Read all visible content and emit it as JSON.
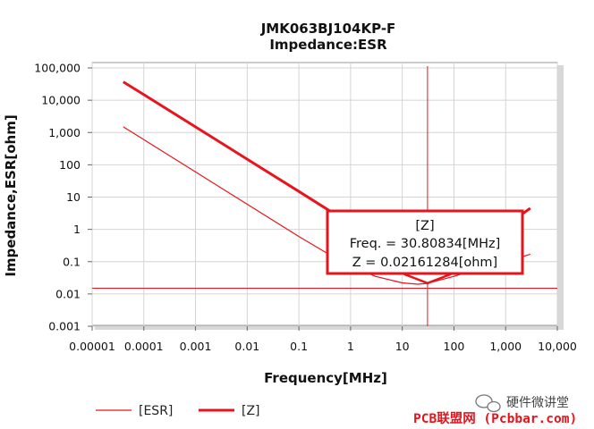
{
  "chart_data": {
    "type": "line",
    "title": "JMK063BJ104KP-F",
    "subtitle": "Impedance:ESR",
    "xlabel": "Frequency[MHz]",
    "ylabel": "Impedance,ESR[ohm]",
    "x_scale": "log",
    "y_scale": "log",
    "xlim": [
      1e-05,
      10000
    ],
    "ylim": [
      0.001,
      100000
    ],
    "x_ticks": [
      "0.00001",
      "0.0001",
      "0.001",
      "0.01",
      "0.1",
      "1",
      "10",
      "100",
      "1,000",
      "10,000"
    ],
    "y_ticks": [
      "100,000",
      "10,000",
      "1,000",
      "100",
      "10",
      "1",
      "0.1",
      "0.01",
      "0.001"
    ],
    "grid": true,
    "legend_position": "bottom-left",
    "series": [
      {
        "name": "[ESR]",
        "color": "#e8141c",
        "x": [
          4e-05,
          0.0001,
          0.001,
          0.01,
          0.1,
          0.5,
          1,
          3,
          10,
          20,
          30,
          100,
          300,
          1000,
          3000
        ],
        "y": [
          1500,
          600,
          60,
          6,
          0.6,
          0.13,
          0.075,
          0.035,
          0.022,
          0.02,
          0.021,
          0.035,
          0.06,
          0.1,
          0.17
        ]
      },
      {
        "name": "[Z]",
        "color": "#e8141c",
        "x": [
          4e-05,
          0.0001,
          0.001,
          0.01,
          0.1,
          1,
          10,
          20,
          30.80834,
          100,
          300,
          1000,
          3000
        ],
        "y": [
          37000,
          14900,
          1490,
          149,
          14.9,
          1.46,
          0.15,
          0.08,
          0.02161284,
          0.1,
          0.35,
          1.3,
          4.5
        ]
      }
    ],
    "marker": {
      "x": 30.80834,
      "y": 0.02161284,
      "y_line_level": 0.015,
      "tooltip": {
        "title": "[Z]",
        "freq_text": "Freq. = 30.80834[MHz]",
        "z_text": "Z = 0.02161284[ohm]"
      }
    }
  },
  "watermark": {
    "line1": "硬件微讲堂",
    "line2": "PCB联盟网 (Pcbbar.com)"
  }
}
